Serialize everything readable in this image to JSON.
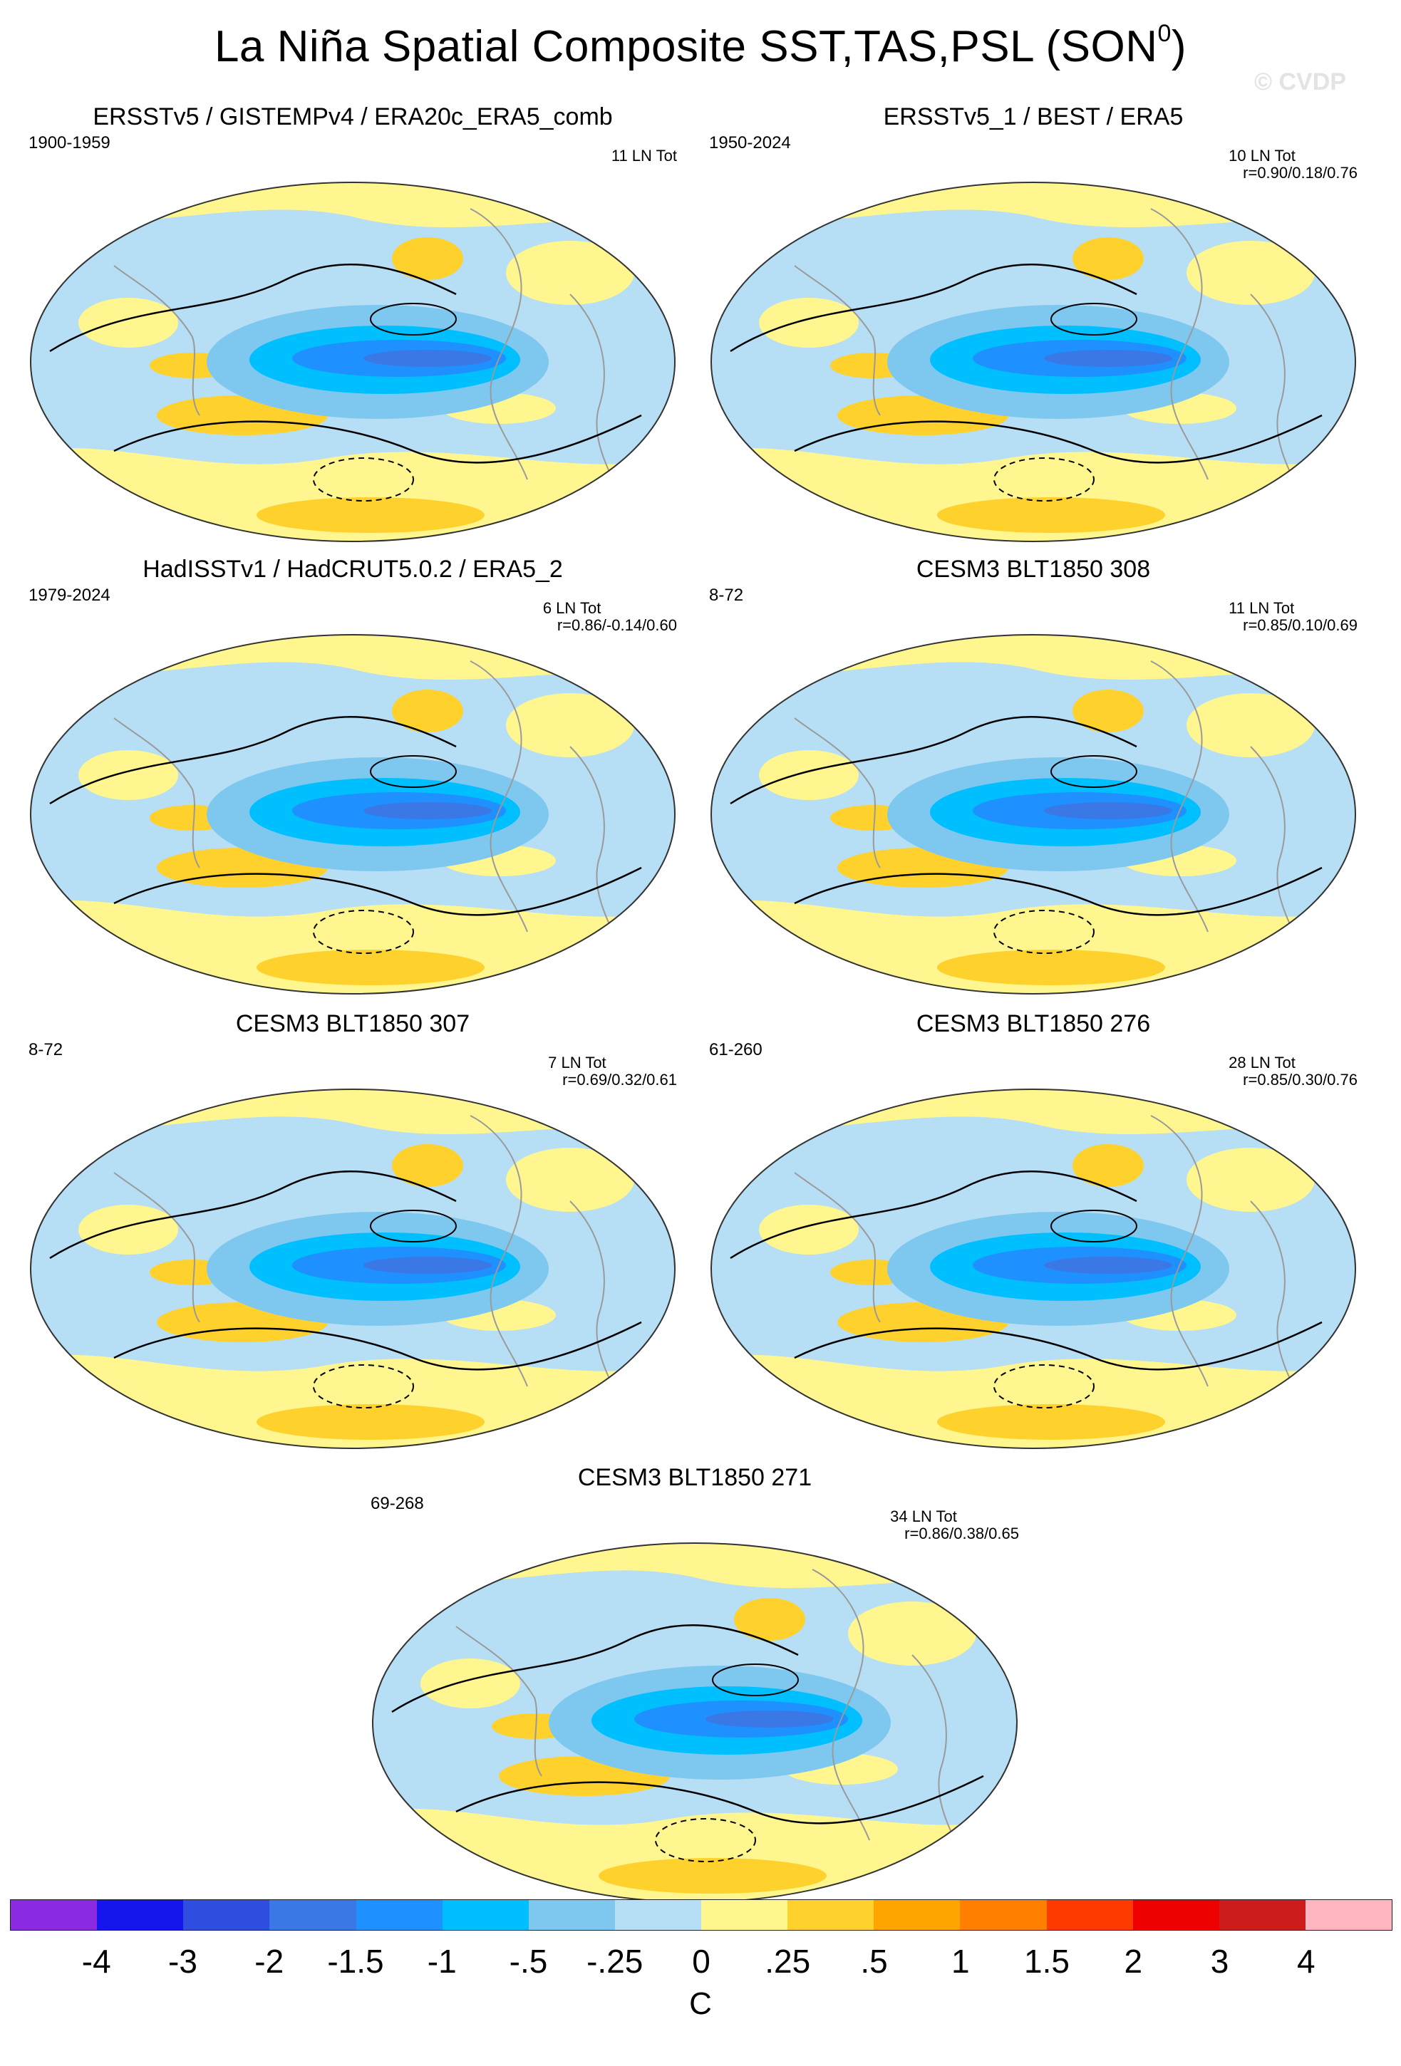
{
  "figure": {
    "title_main": "La Niña Spatial Composite SST,TAS,PSL (SON",
    "title_sup": "0",
    "title_end": ")",
    "watermark": "© CVDP"
  },
  "panels": [
    {
      "title": "ERSSTv5 / GISTEMPv4 / ERA20c_ERA5_comb",
      "period": "1900-1959",
      "count": "11 LN Tot",
      "r": ""
    },
    {
      "title": "ERSSTv5_1 / BEST / ERA5",
      "period": "1950-2024",
      "count": "10 LN Tot",
      "r": "r=0.90/0.18/0.76"
    },
    {
      "title": "HadISSTv1 / HadCRUT5.0.2 / ERA5_2",
      "period": "1979-2024",
      "count": "6 LN Tot",
      "r": "r=0.86/-0.14/0.60"
    },
    {
      "title": "CESM3 BLT1850 308",
      "period": "8-72",
      "count": "11 LN Tot",
      "r": "r=0.85/0.10/0.69"
    },
    {
      "title": "CESM3 BLT1850 307",
      "period": "8-72",
      "count": "7 LN Tot",
      "r": "r=0.69/0.32/0.61"
    },
    {
      "title": "CESM3 BLT1850 276",
      "period": "61-260",
      "count": "28 LN Tot",
      "r": "r=0.85/0.30/0.76"
    },
    {
      "title": "CESM3 BLT1850 271",
      "period": "69-268",
      "count": "34 LN Tot",
      "r": "r=0.86/0.38/0.65"
    }
  ],
  "colorbar": {
    "unit": "C",
    "labels": [
      "-4",
      "-3",
      "-2",
      "-1.5",
      "-1",
      "-.5",
      "-.25",
      "0",
      ".25",
      ".5",
      "1",
      "1.5",
      "2",
      "3",
      "4"
    ],
    "colors": [
      "#8a2be2",
      "#1515ee",
      "#2f4ee0",
      "#3a78e6",
      "#1e90ff",
      "#00bfff",
      "#7ec8f0",
      "#b6def4",
      "#fff68f",
      "#ffd12c",
      "#ffa500",
      "#ff7f00",
      "#ff3a00",
      "#ee0000",
      "#cd1c1c",
      "#ffb6c1"
    ]
  },
  "palette": {
    "land_outline": "#9a9a9a",
    "contour": "#000000",
    "pale_blue": "#b6def4",
    "pale_yellow": "#fff68f"
  }
}
